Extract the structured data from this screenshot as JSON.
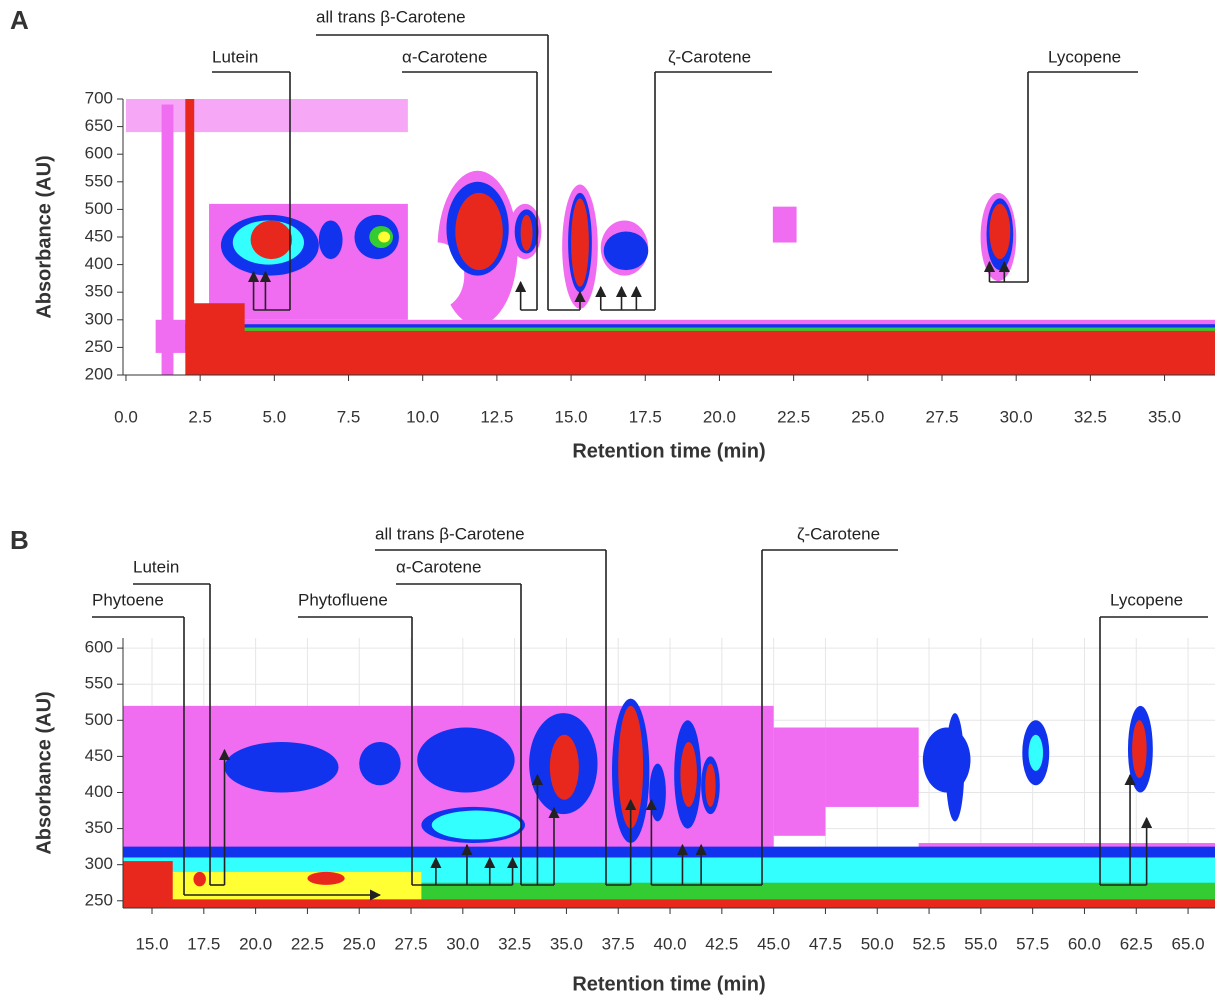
{
  "chart_data": [
    {
      "type": "contour",
      "panel": "A",
      "xlabel": "Retention time (min)",
      "ylabel": "Absorbance (AU)",
      "xlim": [
        -0.1,
        36.7
      ],
      "ylim": [
        200,
        700
      ],
      "grid": false,
      "xticks": [
        {
          "value": 0,
          "label": "0.0"
        },
        {
          "value": 2.5,
          "label": "2.5"
        },
        {
          "value": 5,
          "label": "5.0"
        },
        {
          "value": 7.5,
          "label": "7.5"
        },
        {
          "value": 10,
          "label": "10.0"
        },
        {
          "value": 12.5,
          "label": "12.5"
        },
        {
          "value": 15,
          "label": "15.0"
        },
        {
          "value": 17.5,
          "label": "17.5"
        },
        {
          "value": 20,
          "label": "20.0"
        },
        {
          "value": 22.5,
          "label": "22.5"
        },
        {
          "value": 25,
          "label": "25.0"
        },
        {
          "value": 27.5,
          "label": "27.5"
        },
        {
          "value": 30,
          "label": "30.0"
        },
        {
          "value": 32.5,
          "label": "32.5"
        },
        {
          "value": 35,
          "label": "35.0"
        }
      ],
      "yticks": [
        200,
        250,
        300,
        350,
        400,
        450,
        500,
        550,
        600,
        650,
        700
      ],
      "regions": [
        {
          "shape": "rect",
          "x": [
            0,
            9.5
          ],
          "y": [
            640,
            700
          ],
          "color": "#f6a8f6"
        },
        {
          "shape": "rect",
          "x": [
            2.8,
            9.5
          ],
          "y": [
            300,
            510
          ],
          "color": "#f06cf0"
        },
        {
          "shape": "ellipse",
          "x": [
            10.5,
            13.2
          ],
          "y": [
            290,
            570
          ],
          "color": "#f06cf0"
        },
        {
          "shape": "ellipse",
          "x": [
            12.9,
            14.0
          ],
          "y": [
            410,
            510
          ],
          "color": "#f06cf0"
        },
        {
          "shape": "ellipse",
          "x": [
            14.7,
            15.9
          ],
          "y": [
            320,
            545
          ],
          "color": "#f06cf0"
        },
        {
          "shape": "ellipse",
          "x": [
            16.0,
            17.6
          ],
          "y": [
            380,
            480
          ],
          "color": "#f06cf0"
        },
        {
          "shape": "ellipse",
          "x": [
            28.8,
            30.0
          ],
          "y": [
            370,
            530
          ],
          "color": "#f06cf0"
        },
        {
          "shape": "rect",
          "x": [
            21.8,
            22.6
          ],
          "y": [
            440,
            505
          ],
          "color": "#f06cf0"
        },
        {
          "shape": "rect",
          "x": [
            1.2,
            1.6
          ],
          "y": [
            200,
            690
          ],
          "color": "#f06cf0"
        },
        {
          "shape": "rect",
          "x": [
            1.0,
            36.7
          ],
          "y": [
            240,
            300
          ],
          "color": "#f06cf0"
        },
        {
          "shape": "rect",
          "x": [
            2.0,
            36.7
          ],
          "y": [
            245,
            292
          ],
          "color": "#1133ee"
        },
        {
          "shape": "rect",
          "x": [
            2.0,
            36.7
          ],
          "y": [
            242,
            286
          ],
          "color": "#33cc33"
        },
        {
          "shape": "rect",
          "x": [
            2.2,
            36.7
          ],
          "y": [
            200,
            280
          ],
          "color": "#e8281c"
        },
        {
          "shape": "rect",
          "x": [
            2.2,
            4.0
          ],
          "y": [
            200,
            330
          ],
          "color": "#e8281c"
        },
        {
          "shape": "rect",
          "x": [
            2.0,
            2.3
          ],
          "y": [
            200,
            700
          ],
          "color": "#e8281c"
        },
        {
          "shape": "ellipse",
          "x": [
            9.6,
            11.4
          ],
          "y": [
            320,
            440
          ],
          "color": "#ffffff"
        },
        {
          "shape": "ellipse",
          "x": [
            3.2,
            6.5
          ],
          "y": [
            380,
            490
          ],
          "color": "#1133ee"
        },
        {
          "shape": "ellipse",
          "x": [
            3.6,
            6.0
          ],
          "y": [
            400,
            480
          ],
          "color": "#33ffff"
        },
        {
          "shape": "ellipse",
          "x": [
            4.2,
            5.6
          ],
          "y": [
            410,
            480
          ],
          "color": "#e8281c"
        },
        {
          "shape": "ellipse",
          "x": [
            6.5,
            7.3
          ],
          "y": [
            410,
            480
          ],
          "color": "#1133ee"
        },
        {
          "shape": "ellipse",
          "x": [
            7.7,
            9.2
          ],
          "y": [
            410,
            490
          ],
          "color": "#1133ee"
        },
        {
          "shape": "ellipse",
          "x": [
            8.2,
            9.0
          ],
          "y": [
            430,
            470
          ],
          "color": "#33cc33"
        },
        {
          "shape": "ellipse",
          "x": [
            8.5,
            8.9
          ],
          "y": [
            440,
            460
          ],
          "color": "#ffff33"
        },
        {
          "shape": "ellipse",
          "x": [
            10.8,
            12.9
          ],
          "y": [
            380,
            550
          ],
          "color": "#1133ee"
        },
        {
          "shape": "ellipse",
          "x": [
            11.1,
            12.7
          ],
          "y": [
            390,
            530
          ],
          "color": "#e8281c"
        },
        {
          "shape": "ellipse",
          "x": [
            13.1,
            13.9
          ],
          "y": [
            420,
            500
          ],
          "color": "#1133ee"
        },
        {
          "shape": "ellipse",
          "x": [
            13.3,
            13.7
          ],
          "y": [
            425,
            490
          ],
          "color": "#e8281c"
        },
        {
          "shape": "ellipse",
          "x": [
            14.9,
            15.7
          ],
          "y": [
            350,
            530
          ],
          "color": "#1133ee"
        },
        {
          "shape": "ellipse",
          "x": [
            15.0,
            15.6
          ],
          "y": [
            360,
            520
          ],
          "color": "#e8281c"
        },
        {
          "shape": "ellipse",
          "x": [
            16.1,
            17.6
          ],
          "y": [
            390,
            460
          ],
          "color": "#1133ee"
        },
        {
          "shape": "ellipse",
          "x": [
            29.0,
            29.9
          ],
          "y": [
            390,
            520
          ],
          "color": "#1133ee"
        },
        {
          "shape": "ellipse",
          "x": [
            29.1,
            29.8
          ],
          "y": [
            410,
            510
          ],
          "color": "#e8281c"
        }
      ],
      "annotations": [
        {
          "label": "Lutein",
          "arrows": [
            4.3,
            4.7
          ]
        },
        {
          "label": "all trans β-Carotene",
          "arrows": [
            15.3
          ]
        },
        {
          "label": "α-Carotene",
          "arrows": [
            13.3
          ]
        },
        {
          "label": "ζ-Carotene",
          "arrows": [
            16.0,
            16.7,
            17.2
          ]
        },
        {
          "label": "Lycopene",
          "arrows": [
            29.1,
            29.6
          ]
        }
      ]
    },
    {
      "type": "contour",
      "panel": "B",
      "xlabel": "Retention time (min)",
      "ylabel": "Absorbance (AU)",
      "xlim": [
        13.6,
        66.3
      ],
      "ylim": [
        240,
        614
      ],
      "grid": true,
      "xticks": [
        {
          "value": 15,
          "label": "15.0"
        },
        {
          "value": 17.5,
          "label": "17.5"
        },
        {
          "value": 20,
          "label": "20.0"
        },
        {
          "value": 22.5,
          "label": "22.5"
        },
        {
          "value": 25,
          "label": "25.0"
        },
        {
          "value": 27.5,
          "label": "27.5"
        },
        {
          "value": 30,
          "label": "30.0"
        },
        {
          "value": 32.5,
          "label": "32.5"
        },
        {
          "value": 35,
          "label": "35.0"
        },
        {
          "value": 37.5,
          "label": "37.5"
        },
        {
          "value": 40,
          "label": "40.0"
        },
        {
          "value": 42.5,
          "label": "42.5"
        },
        {
          "value": 45,
          "label": "45.0"
        },
        {
          "value": 47.5,
          "label": "47.5"
        },
        {
          "value": 50,
          "label": "50.0"
        },
        {
          "value": 52.5,
          "label": "52.5"
        },
        {
          "value": 55,
          "label": "55.0"
        },
        {
          "value": 57.5,
          "label": "57.5"
        },
        {
          "value": 60,
          "label": "60.0"
        },
        {
          "value": 62.5,
          "label": "62.5"
        },
        {
          "value": 65,
          "label": "65.0"
        }
      ],
      "yticks": [
        250,
        300,
        350,
        400,
        450,
        500,
        550,
        600
      ],
      "regions": [
        {
          "shape": "rect",
          "x": [
            13.6,
            45.0
          ],
          "y": [
            300,
            520
          ],
          "color": "#f06cf0"
        },
        {
          "shape": "rect",
          "x": [
            45.0,
            47.5
          ],
          "y": [
            340,
            490
          ],
          "color": "#f06cf0"
        },
        {
          "shape": "rect",
          "x": [
            47.5,
            52.0
          ],
          "y": [
            380,
            490
          ],
          "color": "#f06cf0"
        },
        {
          "shape": "rect",
          "x": [
            52.0,
            66.3
          ],
          "y": [
            305,
            330
          ],
          "color": "#f06cf0"
        },
        {
          "shape": "rect",
          "x": [
            13.6,
            66.3
          ],
          "y": [
            298,
            325
          ],
          "color": "#1133ee"
        },
        {
          "shape": "rect",
          "x": [
            13.6,
            66.3
          ],
          "y": [
            258,
            310
          ],
          "color": "#33ffff"
        },
        {
          "shape": "rect",
          "x": [
            13.6,
            66.3
          ],
          "y": [
            250,
            275
          ],
          "color": "#33cc33"
        },
        {
          "shape": "rect",
          "x": [
            13.6,
            28.0
          ],
          "y": [
            250,
            290
          ],
          "color": "#ffff33"
        },
        {
          "shape": "rect",
          "x": [
            13.6,
            66.3
          ],
          "y": [
            240,
            252
          ],
          "color": "#e8281c"
        },
        {
          "shape": "rect",
          "x": [
            13.6,
            16.0
          ],
          "y": [
            240,
            305
          ],
          "color": "#e8281c"
        },
        {
          "shape": "ellipse",
          "x": [
            17.0,
            17.6
          ],
          "y": [
            270,
            290
          ],
          "color": "#e8281c"
        },
        {
          "shape": "ellipse",
          "x": [
            22.5,
            24.3
          ],
          "y": [
            272,
            290
          ],
          "color": "#e8281c"
        },
        {
          "shape": "ellipse",
          "x": [
            18.5,
            24.0
          ],
          "y": [
            400,
            470
          ],
          "color": "#1133ee"
        },
        {
          "shape": "ellipse",
          "x": [
            25.0,
            27.0
          ],
          "y": [
            410,
            470
          ],
          "color": "#1133ee"
        },
        {
          "shape": "ellipse",
          "x": [
            27.8,
            32.5
          ],
          "y": [
            400,
            490
          ],
          "color": "#1133ee"
        },
        {
          "shape": "ellipse",
          "x": [
            28.0,
            33.0
          ],
          "y": [
            330,
            380
          ],
          "color": "#1133ee"
        },
        {
          "shape": "ellipse",
          "x": [
            28.5,
            32.8
          ],
          "y": [
            335,
            375
          ],
          "color": "#33ffff"
        },
        {
          "shape": "ellipse",
          "x": [
            33.2,
            36.5
          ],
          "y": [
            370,
            510
          ],
          "color": "#1133ee"
        },
        {
          "shape": "ellipse",
          "x": [
            34.2,
            35.6
          ],
          "y": [
            390,
            480
          ],
          "color": "#e8281c"
        },
        {
          "shape": "ellipse",
          "x": [
            37.2,
            39.0
          ],
          "y": [
            330,
            530
          ],
          "color": "#1133ee"
        },
        {
          "shape": "ellipse",
          "x": [
            37.5,
            38.7
          ],
          "y": [
            350,
            520
          ],
          "color": "#e8281c"
        },
        {
          "shape": "ellipse",
          "x": [
            39.0,
            39.8
          ],
          "y": [
            360,
            440
          ],
          "color": "#1133ee"
        },
        {
          "shape": "ellipse",
          "x": [
            40.2,
            41.5
          ],
          "y": [
            350,
            500
          ],
          "color": "#1133ee"
        },
        {
          "shape": "ellipse",
          "x": [
            40.5,
            41.3
          ],
          "y": [
            380,
            470
          ],
          "color": "#e8281c"
        },
        {
          "shape": "ellipse",
          "x": [
            41.5,
            42.4
          ],
          "y": [
            370,
            450
          ],
          "color": "#1133ee"
        },
        {
          "shape": "ellipse",
          "x": [
            41.7,
            42.2
          ],
          "y": [
            380,
            440
          ],
          "color": "#e8281c"
        },
        {
          "shape": "ellipse",
          "x": [
            52.2,
            54.5
          ],
          "y": [
            400,
            490
          ],
          "color": "#1133ee"
        },
        {
          "shape": "ellipse",
          "x": [
            53.3,
            54.2
          ],
          "y": [
            360,
            510
          ],
          "color": "#1133ee"
        },
        {
          "shape": "ellipse",
          "x": [
            57.0,
            58.3
          ],
          "y": [
            410,
            500
          ],
          "color": "#1133ee"
        },
        {
          "shape": "ellipse",
          "x": [
            57.3,
            58.0
          ],
          "y": [
            430,
            480
          ],
          "color": "#33ffff"
        },
        {
          "shape": "ellipse",
          "x": [
            62.1,
            63.3
          ],
          "y": [
            400,
            520
          ],
          "color": "#1133ee"
        },
        {
          "shape": "ellipse",
          "x": [
            62.3,
            63.0
          ],
          "y": [
            420,
            500
          ],
          "color": "#e8281c"
        }
      ],
      "annotations": [
        {
          "label": "Phytoene",
          "arrows": [
            26.0
          ]
        },
        {
          "label": "Lutein",
          "arrows": [
            18.5
          ]
        },
        {
          "label": "Phytofluene",
          "arrows": [
            28.7,
            30.2,
            31.3,
            32.4
          ]
        },
        {
          "label": "α-Carotene",
          "arrows": [
            33.6,
            34.4
          ]
        },
        {
          "label": "all trans β-Carotene",
          "arrows": [
            38.1
          ]
        },
        {
          "label": "ζ-Carotene",
          "arrows": [
            39.1,
            40.6,
            41.5
          ]
        },
        {
          "label": "Lycopene",
          "arrows": [
            62.2,
            63.0
          ]
        }
      ]
    }
  ]
}
